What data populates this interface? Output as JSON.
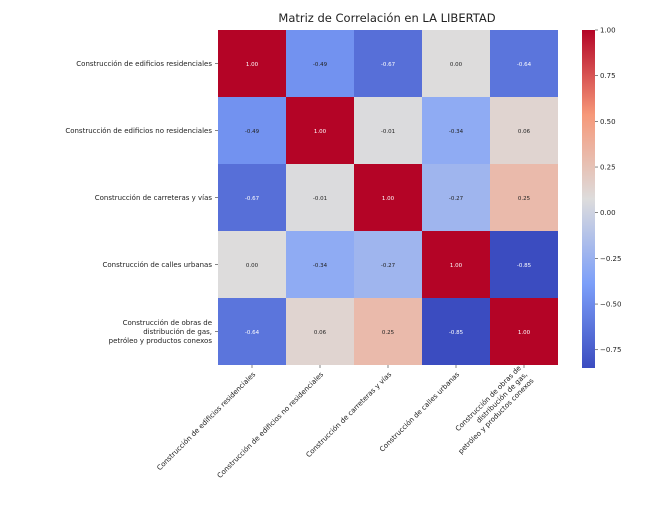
{
  "chart_data": {
    "type": "heatmap",
    "title": "Matriz de Correlación en LA LIBERTAD",
    "row_labels": [
      "Construcción de edificios residenciales",
      "Construcción de edificios no residenciales",
      "Construcción de carreteras y vías",
      "Construcción de calles urbanas",
      "Construcción de obras de\ndistribución de gas,\npetróleo y productos conexos"
    ],
    "col_labels": [
      "Construcción de edificios residenciales",
      "Construcción de edificios no residenciales",
      "Construcción de carreteras y vías",
      "Construcción de calles urbanas",
      "Construcción de obras de\ndistribución de gas,\npetróleo y productos conexos"
    ],
    "values": [
      [
        1.0,
        -0.49,
        -0.67,
        0.0,
        -0.64
      ],
      [
        -0.49,
        1.0,
        -0.01,
        -0.34,
        0.06
      ],
      [
        -0.67,
        -0.01,
        1.0,
        -0.27,
        0.25
      ],
      [
        0.0,
        -0.34,
        -0.27,
        1.0,
        -0.85
      ],
      [
        -0.64,
        0.06,
        0.25,
        -0.85,
        1.0
      ]
    ],
    "value_labels": [
      [
        "1.00",
        "-0.49",
        "-0.67",
        "0.00",
        "-0.64"
      ],
      [
        "-0.49",
        "1.00",
        "-0.01",
        "-0.34",
        "0.06"
      ],
      [
        "-0.67",
        "-0.01",
        "1.00",
        "-0.27",
        "0.25"
      ],
      [
        "0.00",
        "-0.34",
        "-0.27",
        "1.00",
        "-0.85"
      ],
      [
        "-0.64",
        "0.06",
        "0.25",
        "-0.85",
        "1.00"
      ]
    ],
    "colormap": "coolwarm",
    "vmin": -0.85,
    "vmax": 1.0,
    "colorbar_ticks": [
      1.0,
      0.75,
      0.5,
      0.25,
      0.0,
      -0.25,
      -0.5,
      -0.75
    ],
    "colorbar_tick_labels": [
      "1.00",
      "0.75",
      "0.50",
      "0.25",
      "0.00",
      "−0.25",
      "−0.50",
      "−0.75"
    ],
    "colors": {
      "low": "#3b4cc0",
      "mid": "#dddcdc",
      "high": "#b40426"
    }
  }
}
